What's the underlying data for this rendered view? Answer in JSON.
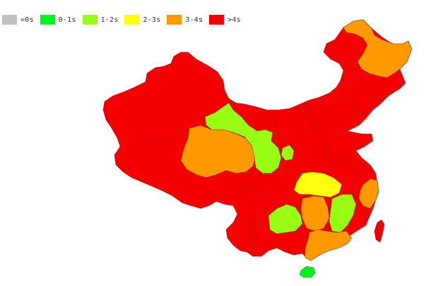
{
  "legend": [
    {
      "label": "=0s",
      "color": "#c0c0c0"
    },
    {
      "label": "0-1s",
      "color": "#00f21b"
    },
    {
      "label": "1-2s",
      "color": "#99ff12"
    },
    {
      "label": "2-3s",
      "color": "#ffff0e"
    },
    {
      "label": "3-4s",
      "color": "#ff9900"
    },
    {
      "label": ">4s",
      "color": "#f20000"
    }
  ],
  "regions": [
    {
      "id": "mainland-base",
      "category": ">4s"
    },
    {
      "id": "qinghai",
      "category": "3-4s"
    },
    {
      "id": "gansu-ningxia",
      "category": "1-2s"
    },
    {
      "id": "shanxi",
      "category": "1-2s"
    },
    {
      "id": "hubei",
      "category": "2-3s"
    },
    {
      "id": "hunan",
      "category": "3-4s"
    },
    {
      "id": "jiangxi",
      "category": "1-2s"
    },
    {
      "id": "guizhou",
      "category": "1-2s"
    },
    {
      "id": "guangdong",
      "category": "3-4s"
    },
    {
      "id": "zhejiang",
      "category": "3-4s"
    },
    {
      "id": "heilongjiang",
      "category": "3-4s"
    },
    {
      "id": "taiwan",
      "category": ">4s"
    },
    {
      "id": "hainan",
      "category": "0-1s"
    }
  ]
}
